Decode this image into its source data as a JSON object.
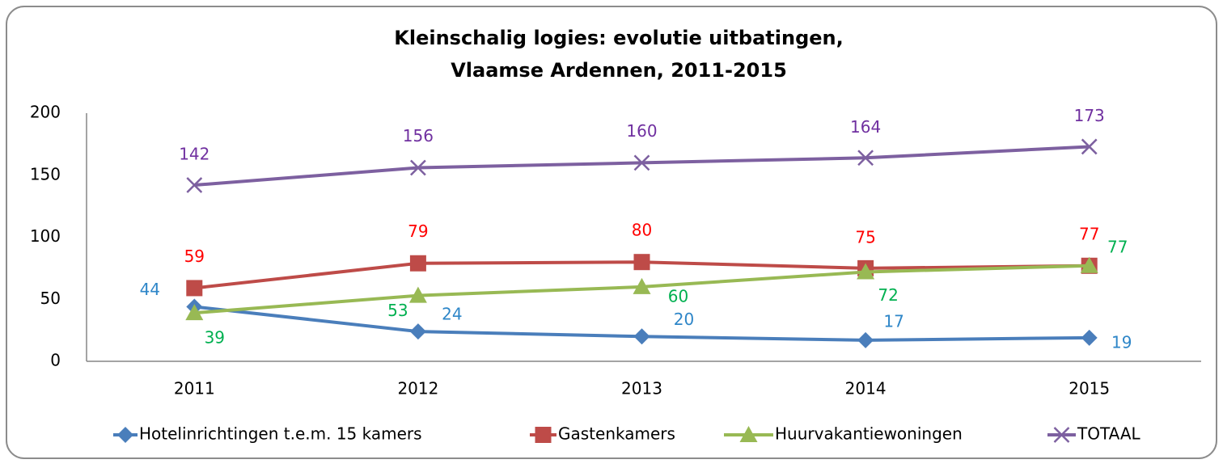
{
  "chart_data": {
    "type": "line",
    "title": [
      "Kleinschalig logies: evolutie uitbatingen,",
      "Vlaamse Ardennen, 2011-2015"
    ],
    "categories": [
      "2011",
      "2012",
      "2013",
      "2014",
      "2015"
    ],
    "series": [
      {
        "name": "Hotelinrichtingen t.e.m. 15 kamers",
        "color": "#4a7ebb",
        "label_color": "#2e86c8",
        "marker": "diamond",
        "values": [
          44,
          24,
          20,
          17,
          19
        ]
      },
      {
        "name": "Gastenkamers",
        "color": "#be4b48",
        "label_color": "#ff0000",
        "marker": "square",
        "values": [
          59,
          79,
          80,
          75,
          77
        ]
      },
      {
        "name": "Huurvakantiewoningen",
        "color": "#98b954",
        "label_color": "#00b050",
        "marker": "triangle",
        "values": [
          39,
          53,
          60,
          72,
          77
        ]
      },
      {
        "name": "TOTAAL",
        "color": "#7d60a0",
        "label_color": "#7030a0",
        "marker": "x",
        "values": [
          142,
          156,
          160,
          164,
          173
        ]
      }
    ],
    "ylim": [
      0,
      200
    ],
    "yticks": [
      0,
      50,
      100,
      150,
      200
    ],
    "grid": false,
    "legend": "bottom"
  }
}
